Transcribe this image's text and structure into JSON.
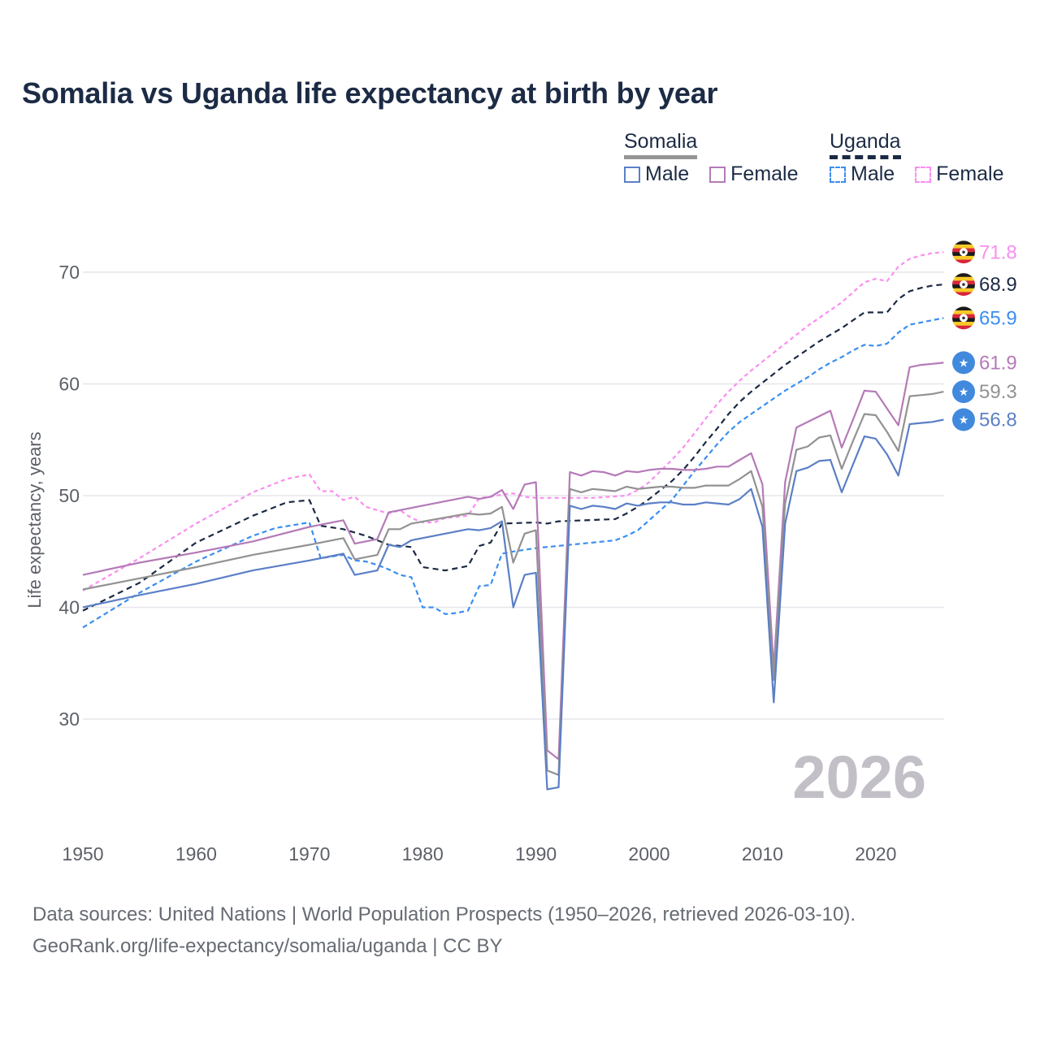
{
  "title": "Somalia vs Uganda life expectancy at birth by year",
  "legend": {
    "somalia": {
      "label": "Somalia",
      "male": "Male",
      "female": "Female"
    },
    "uganda": {
      "label": "Uganda",
      "male": "Male",
      "female": "Female"
    }
  },
  "footer": {
    "line1": "Data sources: United Nations | World Population Prospects (1950–2026, retrieved 2026-03-10).",
    "line2": "GeoRank.org/life-expectancy/somalia/uganda | CC BY"
  },
  "chart_data": {
    "type": "line",
    "title": "Somalia vs Uganda life expectancy at birth by year",
    "xlabel": "",
    "ylabel": "Life expectancy, years",
    "xlim": [
      1950,
      2026
    ],
    "ylim": [
      20,
      75
    ],
    "x_ticks": [
      1950,
      1960,
      1970,
      1980,
      1990,
      2000,
      2010,
      2020
    ],
    "y_ticks": [
      30,
      40,
      50,
      60,
      70
    ],
    "grid": true,
    "annotation": "2026",
    "series": [
      {
        "name": "Uganda Female",
        "country": "Uganda",
        "color": "#f98ef0",
        "dash": "short",
        "end_label": "71.8",
        "icon": "uganda-flag",
        "x": [
          1950,
          1955,
          1960,
          1965,
          1968,
          1970,
          1971,
          1972,
          1973,
          1974,
          1975,
          1976,
          1977,
          1978,
          1979,
          1980,
          1981,
          1982,
          1983,
          1984,
          1985,
          1986,
          1987,
          1988,
          1989,
          1990,
          1995,
          1998,
          1999,
          2000,
          2001,
          2002,
          2003,
          2004,
          2005,
          2006,
          2007,
          2008,
          2009,
          2010,
          2011,
          2012,
          2013,
          2014,
          2015,
          2016,
          2017,
          2018,
          2019,
          2020,
          2021,
          2022,
          2023,
          2024,
          2025,
          2026
        ],
        "y": [
          41.5,
          44.4,
          47.5,
          50.3,
          51.5,
          51.9,
          50.4,
          50.4,
          49.6,
          49.9,
          49.0,
          48.7,
          48.4,
          48.7,
          48.0,
          47.6,
          47.6,
          48.0,
          48.1,
          48.2,
          49.8,
          49.9,
          50.1,
          50.2,
          49.9,
          49.8,
          49.8,
          50.0,
          50.5,
          51.2,
          52.2,
          53.2,
          54.3,
          55.6,
          56.9,
          58.2,
          59.3,
          60.3,
          61.2,
          62.0,
          62.8,
          63.6,
          64.4,
          65.2,
          65.9,
          66.6,
          67.3,
          68.2,
          69.1,
          69.4,
          69.2,
          70.5,
          71.2,
          71.5,
          71.7,
          71.8
        ]
      },
      {
        "name": "Uganda",
        "country": "Uganda",
        "color": "#1b2a44",
        "dash": "long",
        "end_label": "68.9",
        "icon": "uganda-flag",
        "x": [
          1950,
          1955,
          1960,
          1965,
          1968,
          1970,
          1971,
          1973,
          1975,
          1977,
          1979,
          1980,
          1982,
          1984,
          1985,
          1986,
          1987,
          1990,
          1991,
          1992,
          1997,
          1998,
          1999,
          2000,
          2001,
          2002,
          2003,
          2004,
          2005,
          2006,
          2007,
          2008,
          2009,
          2010,
          2011,
          2012,
          2013,
          2014,
          2015,
          2016,
          2017,
          2018,
          2019,
          2020,
          2021,
          2022,
          2023,
          2024,
          2025,
          2026
        ],
        "y": [
          39.7,
          42.2,
          45.8,
          48.2,
          49.4,
          49.6,
          47.3,
          47.0,
          46.4,
          45.6,
          45.4,
          43.6,
          43.3,
          43.7,
          45.5,
          45.8,
          47.5,
          47.6,
          47.5,
          47.7,
          47.9,
          48.4,
          49.0,
          49.7,
          50.5,
          51.3,
          52.3,
          53.5,
          54.8,
          56.0,
          57.3,
          58.4,
          59.3,
          60.1,
          60.9,
          61.7,
          62.4,
          63.1,
          63.8,
          64.4,
          65.0,
          65.7,
          66.4,
          66.4,
          66.4,
          67.6,
          68.3,
          68.6,
          68.8,
          68.9
        ]
      },
      {
        "name": "Uganda Male",
        "country": "Uganda",
        "color": "#3b8ef0",
        "dash": "medium",
        "end_label": "65.9",
        "icon": "uganda-flag",
        "x": [
          1950,
          1955,
          1960,
          1965,
          1967,
          1970,
          1971,
          1973,
          1974,
          1975,
          1976,
          1977,
          1978,
          1979,
          1980,
          1981,
          1982,
          1983,
          1984,
          1985,
          1986,
          1987,
          1988,
          1990,
          1993,
          1995,
          1997,
          1998,
          1999,
          2000,
          2001,
          2002,
          2003,
          2004,
          2005,
          2006,
          2007,
          2008,
          2009,
          2010,
          2011,
          2012,
          2013,
          2014,
          2015,
          2016,
          2017,
          2018,
          2019,
          2020,
          2021,
          2022,
          2023,
          2024,
          2025,
          2026
        ],
        "y": [
          38.2,
          41.3,
          44.1,
          46.4,
          47.1,
          47.6,
          44.4,
          44.7,
          44.2,
          44.1,
          43.8,
          43.4,
          42.9,
          42.7,
          40.0,
          40.0,
          39.4,
          39.5,
          39.7,
          41.9,
          42.0,
          44.8,
          45.0,
          45.3,
          45.6,
          45.8,
          46.0,
          46.4,
          46.9,
          47.8,
          48.7,
          49.6,
          50.9,
          52.2,
          53.4,
          54.6,
          55.7,
          56.6,
          57.3,
          58.0,
          58.7,
          59.4,
          60.0,
          60.6,
          61.3,
          61.9,
          62.4,
          63.0,
          63.5,
          63.4,
          63.6,
          64.6,
          65.3,
          65.5,
          65.7,
          65.9
        ]
      },
      {
        "name": "Somalia Female",
        "country": "Somalia",
        "color": "#b57ab8",
        "dash": "solid",
        "end_label": "61.9",
        "icon": "somalia-flag",
        "x": [
          1950,
          1955,
          1960,
          1965,
          1970,
          1973,
          1974,
          1976,
          1977,
          1984,
          1985,
          1986,
          1987,
          1988,
          1989,
          1990,
          1991,
          1992,
          1993,
          1994,
          1995,
          1996,
          1997,
          1998,
          1999,
          2000,
          2001,
          2002,
          2003,
          2004,
          2005,
          2006,
          2007,
          2008,
          2009,
          2010,
          2011,
          2012,
          2013,
          2014,
          2015,
          2016,
          2017,
          2018,
          2019,
          2020,
          2021,
          2022,
          2023,
          2024,
          2025,
          2026
        ],
        "y": [
          42.9,
          44.0,
          44.9,
          45.9,
          47.2,
          47.8,
          45.7,
          46.1,
          48.5,
          49.9,
          49.7,
          49.9,
          50.5,
          48.8,
          51.0,
          51.2,
          27.2,
          26.4,
          52.1,
          51.8,
          52.2,
          52.1,
          51.8,
          52.2,
          52.1,
          52.3,
          52.4,
          52.4,
          52.3,
          52.3,
          52.4,
          52.6,
          52.6,
          53.2,
          53.8,
          51.0,
          34.5,
          51.2,
          56.1,
          56.6,
          57.1,
          57.6,
          54.3,
          56.8,
          59.4,
          59.3,
          57.8,
          56.3,
          61.5,
          61.7,
          61.8,
          61.9
        ]
      },
      {
        "name": "Somalia",
        "country": "Somalia",
        "color": "#929292",
        "dash": "solid",
        "end_label": "59.3",
        "icon": "somalia-flag",
        "x": [
          1950,
          1955,
          1960,
          1965,
          1970,
          1973,
          1974,
          1976,
          1977,
          1978,
          1979,
          1984,
          1985,
          1986,
          1987,
          1988,
          1989,
          1990,
          1991,
          1992,
          1993,
          1994,
          1995,
          1996,
          1997,
          1998,
          1999,
          2000,
          2001,
          2002,
          2003,
          2004,
          2005,
          2006,
          2007,
          2008,
          2009,
          2010,
          2011,
          2012,
          2013,
          2014,
          2015,
          2016,
          2017,
          2018,
          2019,
          2020,
          2021,
          2022,
          2023,
          2024,
          2025,
          2026
        ],
        "y": [
          41.6,
          42.6,
          43.6,
          44.7,
          45.6,
          46.2,
          44.3,
          44.7,
          47.0,
          47.0,
          47.5,
          48.4,
          48.3,
          48.4,
          49.0,
          44.0,
          46.6,
          46.9,
          25.4,
          25.0,
          50.6,
          50.3,
          50.6,
          50.5,
          50.4,
          50.8,
          50.6,
          50.7,
          50.8,
          50.8,
          50.7,
          50.7,
          50.9,
          50.9,
          50.9,
          51.5,
          52.2,
          49.0,
          33.5,
          49.3,
          54.1,
          54.4,
          55.2,
          55.4,
          52.4,
          54.9,
          57.3,
          57.2,
          55.7,
          54.0,
          58.9,
          59.0,
          59.1,
          59.3
        ]
      },
      {
        "name": "Somalia Male",
        "country": "Somalia",
        "color": "#5b7fc6",
        "dash": "solid",
        "end_label": "56.8",
        "icon": "somalia-flag",
        "x": [
          1950,
          1955,
          1960,
          1965,
          1970,
          1973,
          1974,
          1976,
          1977,
          1978,
          1979,
          1984,
          1985,
          1986,
          1987,
          1988,
          1989,
          1990,
          1991,
          1992,
          1993,
          1994,
          1995,
          1996,
          1997,
          1998,
          1999,
          2000,
          2001,
          2002,
          2003,
          2004,
          2005,
          2006,
          2007,
          2008,
          2009,
          2010,
          2011,
          2012,
          2013,
          2014,
          2015,
          2016,
          2017,
          2018,
          2019,
          2020,
          2021,
          2022,
          2023,
          2024,
          2025,
          2026
        ],
        "y": [
          40.0,
          41.1,
          42.1,
          43.3,
          44.2,
          44.8,
          42.9,
          43.3,
          45.6,
          45.4,
          46.0,
          47.0,
          46.9,
          47.1,
          47.7,
          40.0,
          42.9,
          43.1,
          23.7,
          23.9,
          49.1,
          48.8,
          49.1,
          49.0,
          48.8,
          49.3,
          49.1,
          49.3,
          49.4,
          49.4,
          49.2,
          49.2,
          49.4,
          49.3,
          49.2,
          49.7,
          50.6,
          47.2,
          31.5,
          47.5,
          52.2,
          52.5,
          53.1,
          53.2,
          50.3,
          52.8,
          55.3,
          55.1,
          53.7,
          51.8,
          56.4,
          56.5,
          56.6,
          56.8
        ]
      }
    ]
  }
}
